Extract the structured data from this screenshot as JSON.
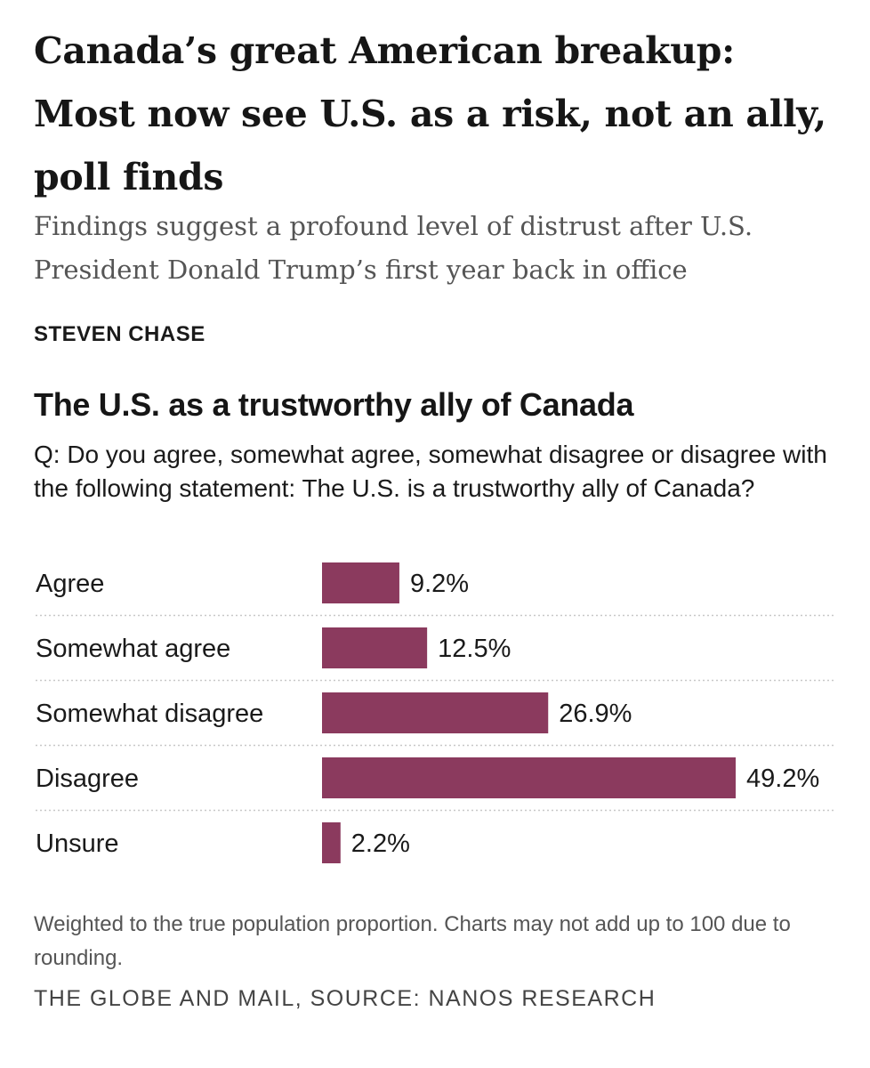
{
  "article": {
    "headline": "Canada’s great American breakup: Most now see U.S. as a risk, not an ally, poll finds",
    "dek": "Findings suggest a profound level of distrust after U.S. President Donald Trump’s first year back in office",
    "byline": "STEVEN CHASE"
  },
  "chart_data": {
    "type": "bar",
    "orientation": "horizontal",
    "title": "The U.S. as a trustworthy ally of Canada",
    "subtitle": "Q: Do you agree, somewhat agree, somewhat disagree or disagree with the following statement: The U.S. is a trustworthy ally of Canada?",
    "categories": [
      "Agree",
      "Somewhat agree",
      "Somewhat disagree",
      "Disagree",
      "Unsure"
    ],
    "values": [
      9.2,
      12.5,
      26.9,
      49.2,
      2.2
    ],
    "value_labels": [
      "9.2%",
      "12.5%",
      "26.9%",
      "49.2%",
      "2.2%"
    ],
    "unit": "%",
    "xlim": [
      0,
      49.2
    ],
    "bar_color": "#8b3a5e",
    "row_separator": "dotted",
    "grid": false,
    "legend": "none",
    "footnote": "Weighted to the true population proportion. Charts may not add up to 100 due to rounding.",
    "source": "THE GLOBE AND MAIL, SOURCE: NANOS RESEARCH"
  }
}
